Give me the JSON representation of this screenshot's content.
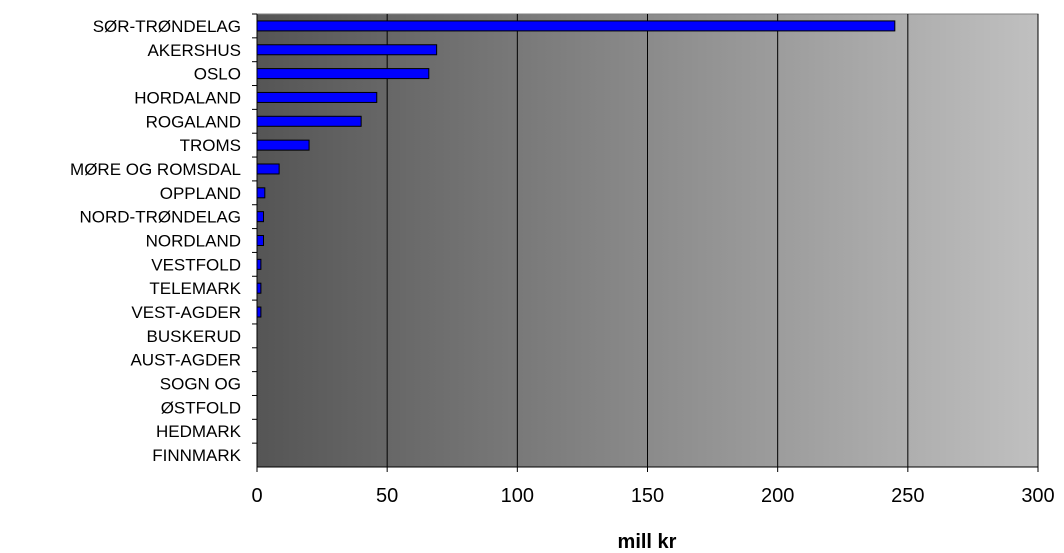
{
  "chart_data": {
    "type": "bar",
    "orientation": "horizontal",
    "categories": [
      "SØR-TRØNDELAG",
      "AKERSHUS",
      "OSLO",
      "HORDALAND",
      "ROGALAND",
      "TROMS",
      "MØRE OG ROMSDAL",
      "OPPLAND",
      "NORD-TRØNDELAG",
      "NORDLAND",
      "VESTFOLD",
      "TELEMARK",
      "VEST-AGDER",
      "BUSKERUD",
      "AUST-AGDER",
      "SOGN OG",
      "ØSTFOLD",
      "HEDMARK",
      "FINNMARK"
    ],
    "values": [
      245,
      69,
      66,
      46,
      40,
      20,
      8.5,
      3,
      2.5,
      2.5,
      1.5,
      1.5,
      1.5,
      0,
      0,
      0,
      0,
      0,
      0
    ],
    "xlabel": "mill kr",
    "ylabel": "",
    "xlim": [
      0,
      300
    ],
    "xticks": [
      0,
      50,
      100,
      150,
      200,
      250,
      300
    ],
    "grid": "vertical",
    "bar_color": "#0000ff",
    "bar_stroke": "#000000",
    "plot_background": "gradient: #555555 (left) to #c0c0c0 (right)",
    "grid_color": "#000000"
  }
}
